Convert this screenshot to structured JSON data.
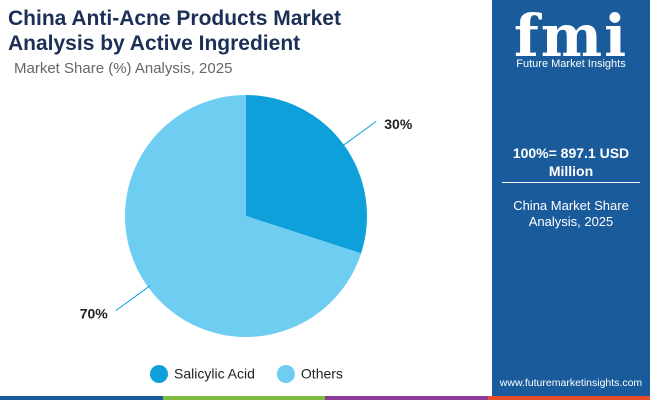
{
  "chart_data": {
    "type": "pie",
    "title": "China Anti-Acne Products Market Analysis by Active Ingredient",
    "subtitle": "Market Share (%) Analysis, 2025",
    "categories": [
      "Salicylic Acid",
      "Others"
    ],
    "values": [
      30,
      70
    ],
    "value_labels": [
      "30%",
      "70%"
    ],
    "colors": [
      "#0ea0da",
      "#6fcdf2"
    ]
  },
  "panel": {
    "logo": "fmi",
    "brand": "Future Market Insights",
    "total": "100%= 897.1 USD Million",
    "caption": "China Market Share Analysis, 2025",
    "url": "www.futuremarketinsights.com"
  }
}
